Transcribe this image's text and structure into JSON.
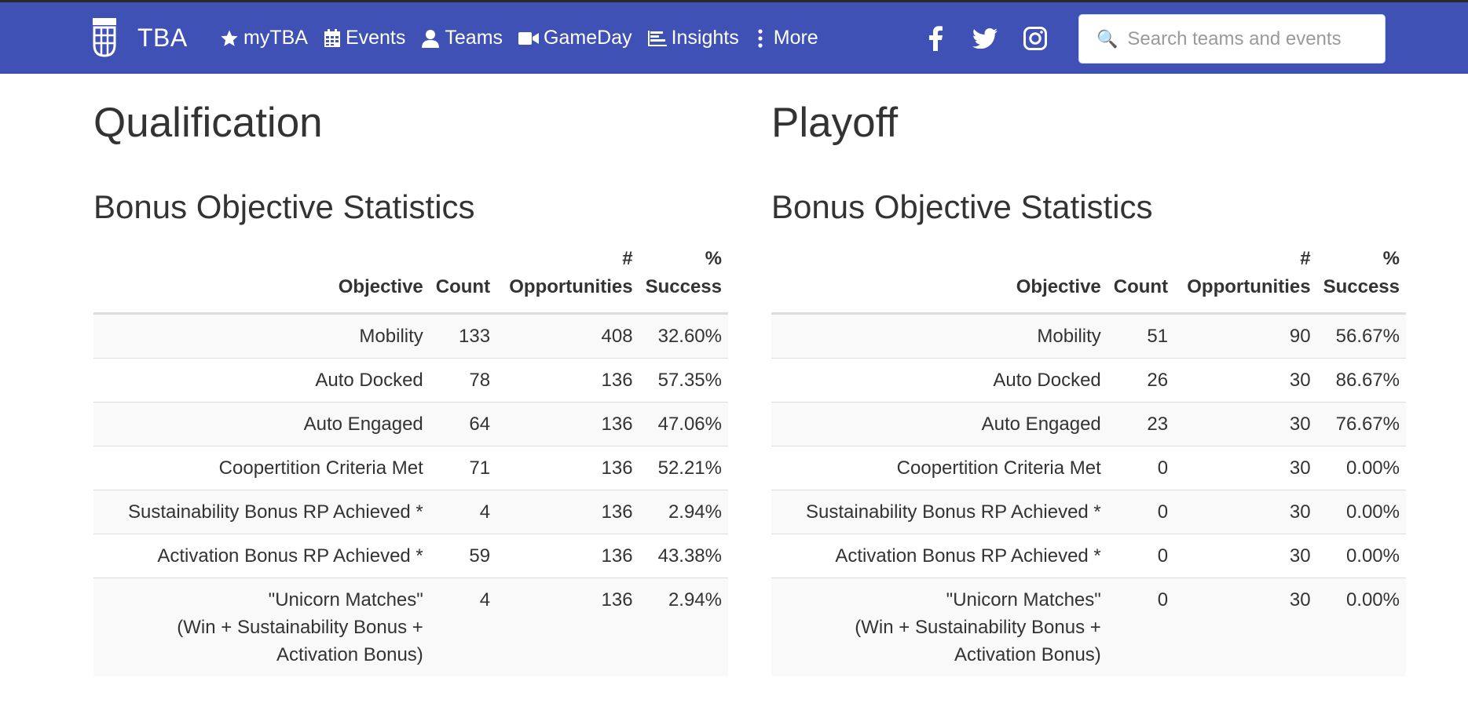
{
  "navbar": {
    "brand": "TBA",
    "items": [
      {
        "label": "myTBA",
        "icon": "star-icon"
      },
      {
        "label": "Events",
        "icon": "calendar-icon"
      },
      {
        "label": "Teams",
        "icon": "user-icon"
      },
      {
        "label": "GameDay",
        "icon": "video-camera-icon"
      },
      {
        "label": "Insights",
        "icon": "bar-chart-icon"
      },
      {
        "label": "More",
        "icon": "vertical-ellipsis-icon"
      }
    ],
    "social": [
      "facebook-icon",
      "twitter-icon",
      "instagram-icon"
    ],
    "search": {
      "placeholder": "Search teams and events",
      "value": ""
    },
    "colors": {
      "bar": "#3f51b5",
      "text": "#ffffff"
    }
  },
  "table_headers": {
    "objective": "Objective",
    "count": "Count",
    "opportunities": [
      "#",
      "Opportunities"
    ],
    "success": [
      "%",
      "Success"
    ]
  },
  "qualification": {
    "title": "Qualification",
    "subtitle": "Bonus Objective Statistics",
    "rows": [
      {
        "objective": [
          "Mobility"
        ],
        "count": "133",
        "opportunities": "408",
        "success": "32.60%"
      },
      {
        "objective": [
          "Auto Docked"
        ],
        "count": "78",
        "opportunities": "136",
        "success": "57.35%"
      },
      {
        "objective": [
          "Auto Engaged"
        ],
        "count": "64",
        "opportunities": "136",
        "success": "47.06%"
      },
      {
        "objective": [
          "Coopertition Criteria Met"
        ],
        "count": "71",
        "opportunities": "136",
        "success": "52.21%"
      },
      {
        "objective": [
          "Sustainability Bonus RP Achieved *"
        ],
        "count": "4",
        "opportunities": "136",
        "success": "2.94%"
      },
      {
        "objective": [
          "Activation Bonus RP Achieved *"
        ],
        "count": "59",
        "opportunities": "136",
        "success": "43.38%"
      },
      {
        "objective": [
          "\"Unicorn Matches\"",
          "(Win + Sustainability Bonus +",
          "Activation Bonus)"
        ],
        "count": "4",
        "opportunities": "136",
        "success": "2.94%"
      }
    ]
  },
  "playoff": {
    "title": "Playoff",
    "subtitle": "Bonus Objective Statistics",
    "rows": [
      {
        "objective": [
          "Mobility"
        ],
        "count": "51",
        "opportunities": "90",
        "success": "56.67%"
      },
      {
        "objective": [
          "Auto Docked"
        ],
        "count": "26",
        "opportunities": "30",
        "success": "86.67%"
      },
      {
        "objective": [
          "Auto Engaged"
        ],
        "count": "23",
        "opportunities": "30",
        "success": "76.67%"
      },
      {
        "objective": [
          "Coopertition Criteria Met"
        ],
        "count": "0",
        "opportunities": "30",
        "success": "0.00%"
      },
      {
        "objective": [
          "Sustainability Bonus RP Achieved *"
        ],
        "count": "0",
        "opportunities": "30",
        "success": "0.00%"
      },
      {
        "objective": [
          "Activation Bonus RP Achieved *"
        ],
        "count": "0",
        "opportunities": "30",
        "success": "0.00%"
      },
      {
        "objective": [
          "\"Unicorn Matches\"",
          "(Win + Sustainability Bonus +",
          "Activation Bonus)"
        ],
        "count": "0",
        "opportunities": "30",
        "success": "0.00%"
      }
    ]
  }
}
